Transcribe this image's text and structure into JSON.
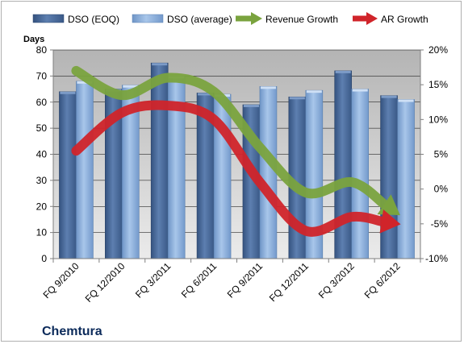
{
  "company": "Chemtura",
  "chart_data": {
    "type": "bar",
    "categories": [
      "FQ 9/2010",
      "FQ 12/2010",
      "FQ 3/2011",
      "FQ 6/2011",
      "FQ 9/2011",
      "FQ 12/2011",
      "FQ 3/2012",
      "FQ 6/2012"
    ],
    "series": [
      {
        "name": "DSO (EOQ)",
        "type": "bar",
        "axis": "left",
        "color": "#4a6a98",
        "values": [
          64,
          65,
          75,
          63.5,
          59,
          62,
          72,
          62.5
        ]
      },
      {
        "name": "DSO (average)",
        "type": "bar",
        "axis": "left",
        "color": "#8fb1dc",
        "values": [
          68,
          66.5,
          70,
          63,
          66,
          64.5,
          65,
          61
        ]
      },
      {
        "name": "Revenue Growth",
        "type": "line-arrow",
        "axis": "right",
        "color": "#7aa33e",
        "values": [
          17,
          13.5,
          16,
          14,
          6,
          -0.5,
          1,
          -3.5
        ]
      },
      {
        "name": "AR Growth",
        "type": "line-arrow",
        "axis": "right",
        "color": "#d0242a",
        "values": [
          5.5,
          11,
          12,
          10,
          1,
          -6,
          -4,
          -5
        ]
      }
    ],
    "ylabel": "Days",
    "ylim": [
      0,
      80
    ],
    "yticks": [
      "0",
      "10",
      "20",
      "30",
      "40",
      "50",
      "60",
      "70",
      "80"
    ],
    "y2lim": [
      -10,
      20
    ],
    "y2ticks": [
      "-10%",
      "-5%",
      "0%",
      "5%",
      "10%",
      "15%",
      "20%"
    ],
    "grid": true,
    "legend_position": "top"
  }
}
